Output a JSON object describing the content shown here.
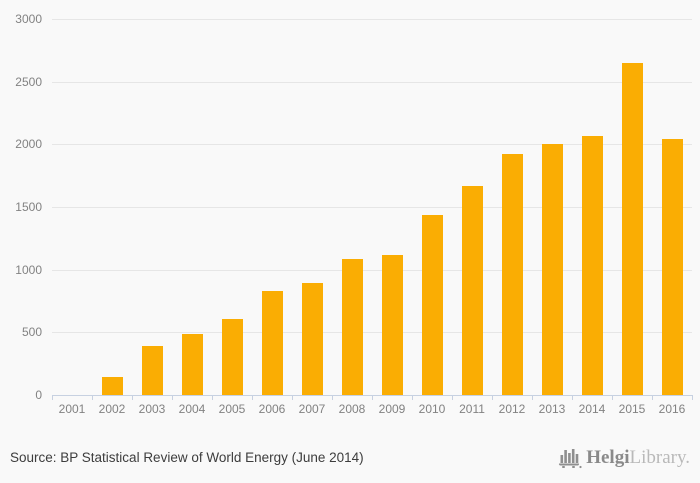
{
  "page": {
    "background_color": "#f9f9f9"
  },
  "chart_data": {
    "type": "bar",
    "title": "",
    "xlabel": "",
    "ylabel": "",
    "categories": [
      "2001",
      "2002",
      "2003",
      "2004",
      "2005",
      "2006",
      "2007",
      "2008",
      "2009",
      "2010",
      "2011",
      "2012",
      "2013",
      "2014",
      "2015",
      "2016"
    ],
    "values": [
      0,
      140,
      390,
      490,
      610,
      830,
      890,
      1085,
      1115,
      1435,
      1665,
      1920,
      2005,
      2070,
      2645,
      2040
    ],
    "ylim": [
      0,
      3000
    ],
    "yticks": [
      0,
      500,
      1000,
      1500,
      2000,
      2500,
      3000
    ],
    "grid": true,
    "legend_position": "none",
    "bar_color": "#faad03",
    "gridline_color": "#e6e6e6",
    "axis_line_color": "#c7d1e1",
    "tick_label_color": "#828282"
  },
  "footer": {
    "source_text": "Source: BP Statistical Review of World Energy (June 2014)",
    "logo": {
      "brand_primary": "Helgi",
      "brand_secondary": "Library.",
      "icon": "bar-chart-logo-icon",
      "icon_color": "#8f8f8f"
    }
  }
}
